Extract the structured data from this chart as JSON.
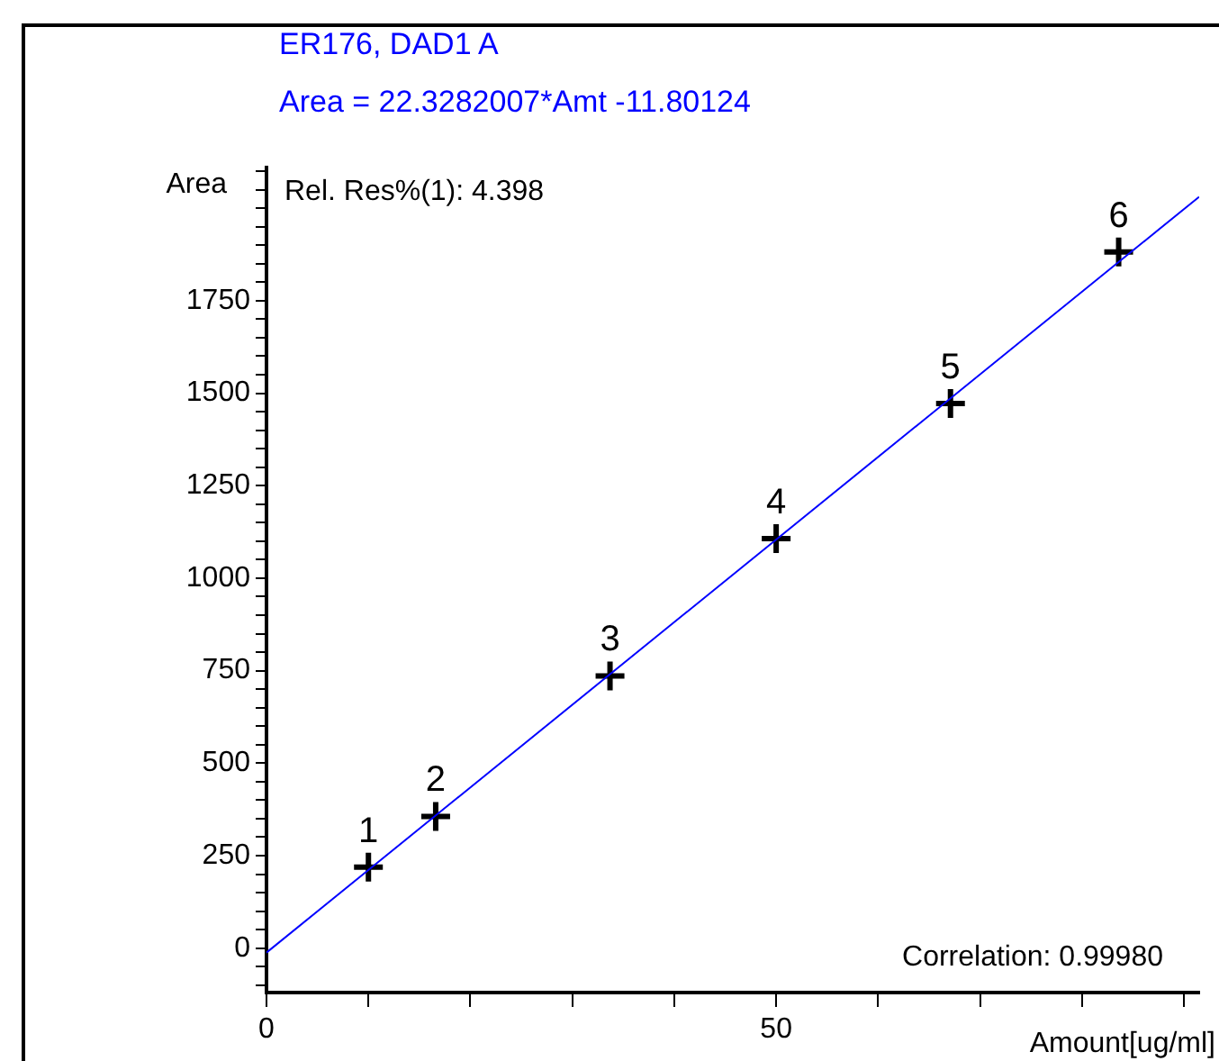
{
  "chart_data": {
    "type": "scatter",
    "title": "ER176, DAD1 A",
    "subtitle": "Area = 22.3282007*Amt -11.80124",
    "ylabel": "Area",
    "xlabel": "Amount[ug/ml]",
    "annotations": [
      "Rel. Res%(1): 4.398",
      "Correlation: 0.99980",
      {
        "text": "1",
        "x": 10,
        "y": 219
      },
      {
        "text": "2",
        "x": 16.6,
        "y": 356
      },
      {
        "text": "3",
        "x": 33.7,
        "y": 736
      },
      {
        "text": "4",
        "x": 50,
        "y": 1107
      },
      {
        "text": "5",
        "x": 67.1,
        "y": 1472
      },
      {
        "text": "6",
        "x": 83.6,
        "y": 1882
      }
    ],
    "marker": "cross",
    "grid": false,
    "legend": false,
    "xlim": [
      0,
      91.5
    ],
    "ylim": [
      -120,
      2110
    ],
    "xticks": [
      0,
      {
        "value": 10,
        "label": null
      },
      {
        "value": 20,
        "label": null
      },
      {
        "value": 30,
        "label": null
      },
      {
        "value": 40,
        "label": null
      },
      50,
      {
        "value": 60,
        "label": null
      },
      {
        "value": 70,
        "label": null
      },
      {
        "value": 80,
        "label": null
      },
      {
        "value": 90,
        "label": null
      }
    ],
    "yticks": [
      {
        "value": -100,
        "label": null
      },
      {
        "value": -50,
        "label": null
      },
      0,
      {
        "value": 50,
        "label": null
      },
      {
        "value": 100,
        "label": null
      },
      {
        "value": 150,
        "label": null
      },
      {
        "value": 200,
        "label": null
      },
      250,
      {
        "value": 300,
        "label": null
      },
      {
        "value": 350,
        "label": null
      },
      {
        "value": 400,
        "label": null
      },
      {
        "value": 450,
        "label": null
      },
      500,
      {
        "value": 550,
        "label": null
      },
      {
        "value": 600,
        "label": null
      },
      {
        "value": 650,
        "label": null
      },
      {
        "value": 700,
        "label": null
      },
      750,
      {
        "value": 800,
        "label": null
      },
      {
        "value": 850,
        "label": null
      },
      {
        "value": 900,
        "label": null
      },
      {
        "value": 950,
        "label": null
      },
      1000,
      {
        "value": 1050,
        "label": null
      },
      {
        "value": 1100,
        "label": null
      },
      {
        "value": 1150,
        "label": null
      },
      {
        "value": 1200,
        "label": null
      },
      1250,
      {
        "value": 1300,
        "label": null
      },
      {
        "value": 1350,
        "label": null
      },
      {
        "value": 1400,
        "label": null
      },
      {
        "value": 1450,
        "label": null
      },
      1500,
      {
        "value": 1550,
        "label": null
      },
      {
        "value": 1600,
        "label": null
      },
      {
        "value": 1650,
        "label": null
      },
      {
        "value": 1700,
        "label": null
      },
      1750,
      {
        "value": 1800,
        "label": null
      },
      {
        "value": 1850,
        "label": null
      },
      {
        "value": 1900,
        "label": null
      },
      {
        "value": 1950,
        "label": null
      },
      {
        "value": 2000,
        "label": null
      },
      {
        "value": 2050,
        "label": null
      },
      {
        "value": 2100,
        "label": null
      }
    ],
    "series": [
      {
        "type": "line",
        "color": "#0000ff",
        "marker": "none",
        "x": [
          0,
          91.5
        ],
        "values": [
          -12,
          2031
        ]
      },
      {
        "color": "#000000",
        "x": [
          10,
          16.6,
          33.7,
          50,
          67.1,
          83.6
        ],
        "values": [
          219,
          356,
          736,
          1107,
          1472,
          1882
        ]
      }
    ]
  }
}
